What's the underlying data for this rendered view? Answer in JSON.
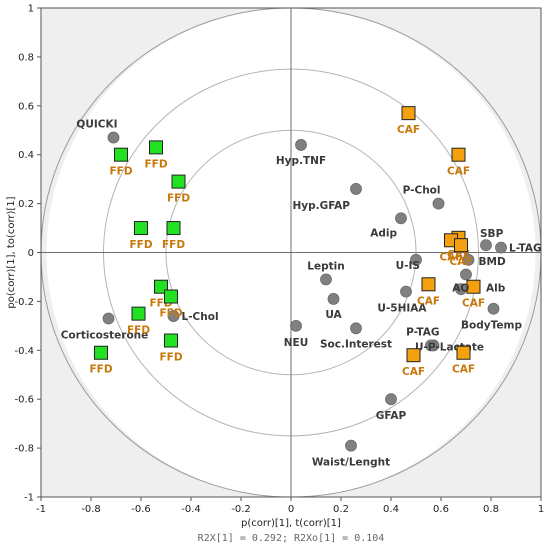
{
  "chart_data": {
    "type": "scatter",
    "title": "",
    "xlabel": "p(corr)[1], t(corr)[1]",
    "ylabel": "po(corr)[1], to(corr)[1]",
    "footer": "R2X[1] = 0.292; R2Xo[1] = 0.104",
    "xlim": [
      -1,
      1
    ],
    "ylim": [
      -1,
      1
    ],
    "x_ticks": [
      "-1",
      "-0.8",
      "-0.6",
      "-0.4",
      "-0.2",
      "0",
      "0.2",
      "0.4",
      "0.6",
      "0.8",
      "1"
    ],
    "y_ticks": [
      "1",
      "0.8",
      "0.6",
      "0.4",
      "0.2",
      "0",
      "-0.2",
      "-0.4",
      "-0.6",
      "-0.8",
      "-1"
    ],
    "circles": [
      1.0,
      0.75,
      0.5
    ],
    "colors": {
      "variables": "#808080",
      "ffd": "#22e022",
      "caf": "#f5a00f",
      "caf_label": "#c8780a",
      "variable_label": "#3a3a3a",
      "background": "#efefef"
    },
    "series": [
      {
        "name": "variables",
        "marker": "circle",
        "points": [
          {
            "label": "QUICKI",
            "x": -0.71,
            "y": 0.47
          },
          {
            "label": "Hyp.TNF",
            "x": 0.04,
            "y": 0.44
          },
          {
            "label": "Hyp.GFAP",
            "x": 0.26,
            "y": 0.26
          },
          {
            "label": "P-Chol",
            "x": 0.59,
            "y": 0.2
          },
          {
            "label": "Adip",
            "x": 0.44,
            "y": 0.14
          },
          {
            "label": "SBP",
            "x": 0.78,
            "y": 0.03
          },
          {
            "label": "L-TAG",
            "x": 0.84,
            "y": 0.02
          },
          {
            "label": "BMD",
            "x": 0.71,
            "y": -0.03
          },
          {
            "label": "U-IS",
            "x": 0.5,
            "y": -0.03
          },
          {
            "label": "",
            "x": 0.7,
            "y": -0.09
          },
          {
            "label": "U-5HIAA",
            "x": 0.46,
            "y": -0.16
          },
          {
            "label": "Leptin",
            "x": 0.14,
            "y": -0.11
          },
          {
            "label": "UA",
            "x": 0.17,
            "y": -0.19
          },
          {
            "label": "Soc.Interest",
            "x": 0.26,
            "y": -0.31
          },
          {
            "label": "NEU",
            "x": 0.02,
            "y": -0.3
          },
          {
            "label": "BodyTemp",
            "x": 0.81,
            "y": -0.23
          },
          {
            "label": "",
            "x": 0.68,
            "y": -0.15
          },
          {
            "label": "P-TAG",
            "x": 0.57,
            "y": -0.38
          },
          {
            "label": "U-P-Lactate",
            "x": 0.56,
            "y": -0.38
          },
          {
            "label": "GFAP",
            "x": 0.4,
            "y": -0.6
          },
          {
            "label": "Waist/Lenght",
            "x": 0.24,
            "y": -0.79
          },
          {
            "label": "Corticosterone",
            "x": -0.73,
            "y": -0.27
          },
          {
            "label": "L-Chol",
            "x": -0.47,
            "y": -0.26
          }
        ]
      },
      {
        "name": "FFD",
        "marker": "square",
        "points": [
          {
            "label": "FFD",
            "x": -0.68,
            "y": 0.4
          },
          {
            "label": "FFD",
            "x": -0.54,
            "y": 0.43
          },
          {
            "label": "FFD",
            "x": -0.45,
            "y": 0.29
          },
          {
            "label": "FFD",
            "x": -0.6,
            "y": 0.1
          },
          {
            "label": "FFD",
            "x": -0.47,
            "y": 0.1
          },
          {
            "label": "FFD",
            "x": -0.52,
            "y": -0.14
          },
          {
            "label": "FFD",
            "x": -0.48,
            "y": -0.18
          },
          {
            "label": "FFD",
            "x": -0.61,
            "y": -0.25
          },
          {
            "label": "FFD",
            "x": -0.48,
            "y": -0.36
          },
          {
            "label": "FFD",
            "x": -0.76,
            "y": -0.41
          }
        ]
      },
      {
        "name": "CAF",
        "marker": "square",
        "points": [
          {
            "label": "CAF",
            "x": 0.47,
            "y": 0.57
          },
          {
            "label": "CAF",
            "x": 0.67,
            "y": 0.4
          },
          {
            "label": "CAF",
            "x": 0.67,
            "y": 0.06
          },
          {
            "label": "CAF",
            "x": 0.64,
            "y": 0.05
          },
          {
            "label": "CAF",
            "x": 0.68,
            "y": 0.03
          },
          {
            "label": "CAF",
            "x": 0.55,
            "y": -0.13
          },
          {
            "label": "CAF",
            "x": 0.73,
            "y": -0.14
          },
          {
            "label": "CAF",
            "x": 0.49,
            "y": -0.42
          },
          {
            "label": "CAF",
            "x": 0.69,
            "y": -0.41
          }
        ]
      }
    ]
  }
}
